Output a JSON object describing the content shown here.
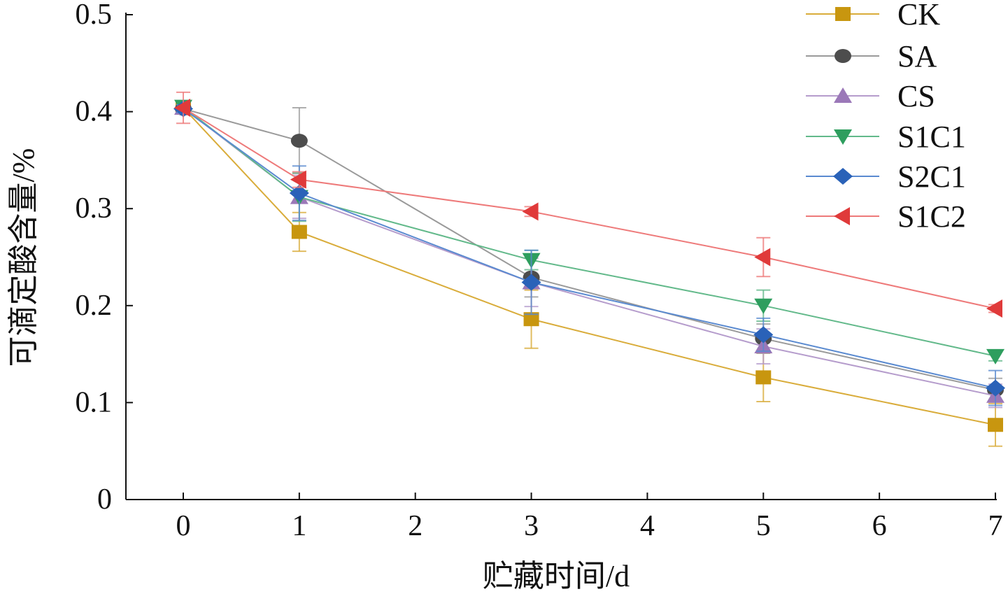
{
  "chart_data": {
    "type": "line",
    "title": "",
    "xlabel": "贮藏时间/d",
    "ylabel": "可滴定酸含量/%",
    "xlim": [
      -0.5,
      7
    ],
    "ylim": [
      0,
      0.5
    ],
    "xticks": [
      "0",
      "1",
      "2",
      "3",
      "4",
      "5",
      "6",
      "7"
    ],
    "yticks": [
      "0",
      "0.1",
      "0.2",
      "0.3",
      "0.4",
      "0.5"
    ],
    "legend_position": "top-right",
    "grid": false,
    "x": [
      0,
      1,
      3,
      5,
      7
    ],
    "series": [
      {
        "name": "CK",
        "marker": "square",
        "color": "#c8960f",
        "line_color": "#d9ac3a",
        "values": [
          0.404,
          0.276,
          0.186,
          0.126,
          0.077
        ],
        "errors": [
          0.004,
          0.02,
          0.03,
          0.025,
          0.022
        ]
      },
      {
        "name": "SA",
        "marker": "circle",
        "color": "#4d4d4d",
        "line_color": "#9a9a9a",
        "values": [
          0.403,
          0.37,
          0.229,
          0.166,
          0.113
        ],
        "errors": [
          0.004,
          0.034,
          0.02,
          0.015,
          0.012
        ]
      },
      {
        "name": "CS",
        "marker": "triangle-up",
        "color": "#9b78b8",
        "line_color": "#b59ccc",
        "values": [
          0.404,
          0.312,
          0.224,
          0.158,
          0.107
        ],
        "errors": [
          0.004,
          0.022,
          0.025,
          0.018,
          0.012
        ]
      },
      {
        "name": "S1C1",
        "marker": "triangle-down",
        "color": "#2e9e5e",
        "line_color": "#62b98a",
        "values": [
          0.405,
          0.312,
          0.247,
          0.2,
          0.148
        ],
        "errors": [
          0.004,
          0.025,
          0.01,
          0.016,
          0.005
        ]
      },
      {
        "name": "S2C1",
        "marker": "diamond",
        "color": "#2a62b8",
        "line_color": "#5a8ad0",
        "values": [
          0.403,
          0.316,
          0.224,
          0.17,
          0.115
        ],
        "errors": [
          0.004,
          0.028,
          0.033,
          0.017,
          0.018
        ]
      },
      {
        "name": "S1C2",
        "marker": "triangle-left",
        "color": "#e03a3a",
        "line_color": "#ee7a7a",
        "values": [
          0.404,
          0.33,
          0.297,
          0.25,
          0.197
        ],
        "errors": [
          0.016,
          0.008,
          0.005,
          0.02,
          0.004
        ]
      }
    ]
  }
}
